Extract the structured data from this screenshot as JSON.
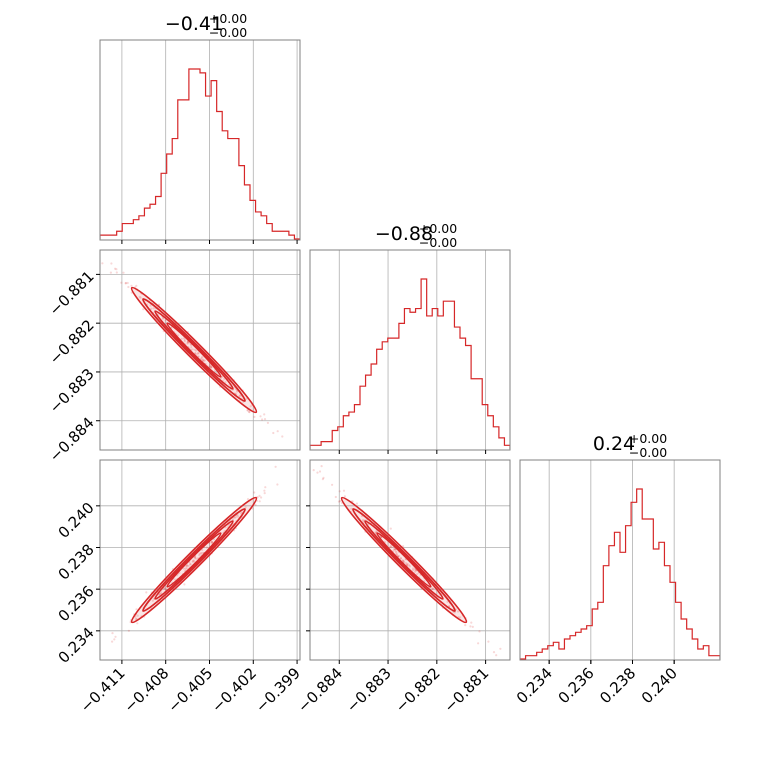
{
  "chart_data": {
    "type": "corner",
    "color": "#d62728",
    "grid": true,
    "parameters": [
      {
        "title_value": "−0.41",
        "title_plus": "+0.00",
        "title_minus": "−0.00",
        "range": [
          -0.4125,
          -0.3988
        ],
        "ticks": [
          -0.411,
          -0.408,
          -0.405,
          -0.402,
          -0.399
        ],
        "tick_labels": [
          "−0.411",
          "−0.408",
          "−0.405",
          "−0.402",
          "−0.399"
        ],
        "hist_counts": [
          1,
          1,
          1,
          2,
          4,
          4,
          5,
          6,
          8,
          9,
          11,
          17,
          22,
          26,
          36,
          36,
          44,
          44,
          43,
          37,
          41,
          33,
          28,
          26,
          26,
          19,
          14,
          10,
          7,
          6,
          4,
          2,
          2,
          2,
          1,
          0
        ]
      },
      {
        "title_value": "−0.88",
        "title_plus": "+0.00",
        "title_minus": "−0.00",
        "range": [
          -0.8846,
          -0.8805
        ],
        "ticks": [
          -0.884,
          -0.883,
          -0.882,
          -0.881
        ],
        "tick_labels": [
          "−0.884",
          "−0.883",
          "−0.882",
          "−0.881"
        ],
        "hist_counts": [
          1,
          1,
          2,
          2,
          5,
          6,
          9,
          10,
          12,
          17,
          20,
          23,
          27,
          29,
          30,
          30,
          34,
          38,
          37,
          38,
          46,
          36,
          38,
          36,
          40,
          40,
          33,
          30,
          28,
          19,
          19,
          12,
          9,
          6,
          3,
          1
        ]
      },
      {
        "title_value": "0.24",
        "title_plus": "+0.00",
        "title_minus": "−0.00",
        "range": [
          0.2326,
          0.2422
        ],
        "ticks": [
          0.234,
          0.236,
          0.238,
          0.24
        ],
        "tick_labels": [
          "0.234",
          "0.236",
          "0.238",
          "0.240"
        ],
        "hist_counts": [
          0,
          1,
          1,
          2,
          3,
          4,
          5,
          3,
          6,
          7,
          8,
          9,
          10,
          15,
          17,
          28,
          34,
          38,
          32,
          40,
          47,
          51,
          42,
          42,
          33,
          35,
          28,
          23,
          17,
          12,
          9,
          6,
          3,
          4,
          1,
          1
        ]
      }
    ],
    "contour_pairs": [
      {
        "row": 1,
        "col": 0,
        "slope": -0.355,
        "width": 0.00012
      },
      {
        "row": 2,
        "col": 0,
        "slope": 0.62,
        "width": 0.00016
      },
      {
        "row": 2,
        "col": 1,
        "slope": -1.75,
        "width": 0.00012
      }
    ]
  }
}
